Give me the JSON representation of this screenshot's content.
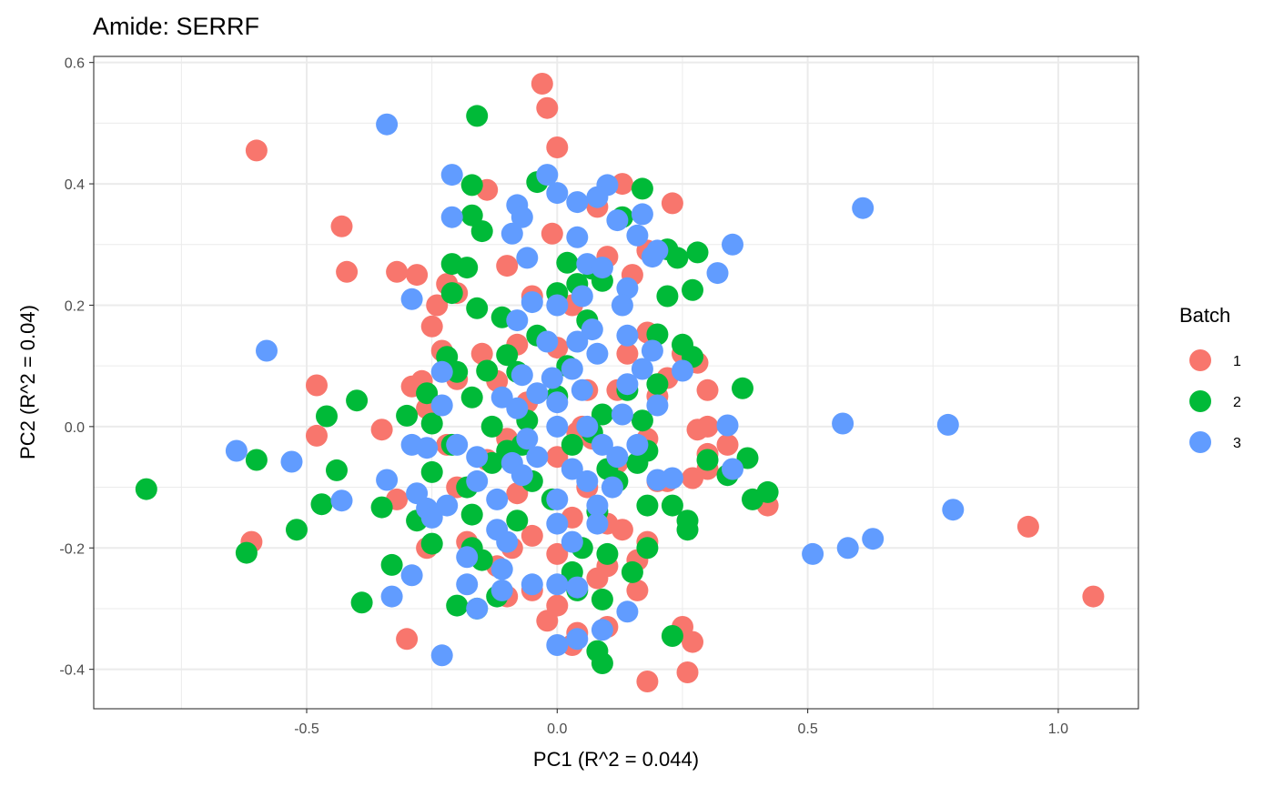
{
  "chart_data": {
    "type": "scatter",
    "title": "Amide: SERRF",
    "xlabel": "PC1 (R^2 = 0.044)",
    "ylabel": "PC2 (R^2 = 0.04)",
    "xlim": [
      -0.925,
      1.16
    ],
    "ylim": [
      -0.465,
      0.61
    ],
    "x_ticks": [
      -0.5,
      0.0,
      0.5,
      1.0
    ],
    "x_tick_labels": [
      "-0.5",
      "0.0",
      "0.5",
      "1.0"
    ],
    "y_ticks": [
      -0.4,
      -0.2,
      0.0,
      0.2,
      0.4,
      0.6
    ],
    "y_tick_labels": [
      "-0.4",
      "-0.2",
      "0.0",
      "0.2",
      "0.4",
      "0.6"
    ],
    "grid": true,
    "legend": {
      "title": "Batch",
      "position": "right"
    },
    "series": [
      {
        "name": "1",
        "color": "#F8766D",
        "points": [
          [
            -0.03,
            0.565
          ],
          [
            -0.02,
            0.525
          ],
          [
            0.0,
            0.46
          ],
          [
            -0.6,
            0.455
          ],
          [
            -0.14,
            0.39
          ],
          [
            0.13,
            0.4
          ],
          [
            0.23,
            0.368
          ],
          [
            -0.43,
            0.33
          ],
          [
            -0.42,
            0.255
          ],
          [
            -0.32,
            0.255
          ],
          [
            -0.28,
            0.25
          ],
          [
            -0.1,
            0.265
          ],
          [
            -0.01,
            0.318
          ],
          [
            0.08,
            0.362
          ],
          [
            0.1,
            0.28
          ],
          [
            0.18,
            0.29
          ],
          [
            -0.22,
            0.235
          ],
          [
            -0.2,
            0.22
          ],
          [
            -0.24,
            0.2
          ],
          [
            -0.05,
            0.215
          ],
          [
            0.15,
            0.25
          ],
          [
            -0.25,
            0.165
          ],
          [
            -0.23,
            0.125
          ],
          [
            -0.08,
            0.135
          ],
          [
            0.03,
            0.2
          ],
          [
            0.18,
            0.155
          ],
          [
            0.3,
            0.06
          ],
          [
            0.28,
            0.105
          ],
          [
            -0.48,
            0.068
          ],
          [
            -0.29,
            0.066
          ],
          [
            -0.27,
            0.075
          ],
          [
            -0.2,
            0.078
          ],
          [
            -0.12,
            0.075
          ],
          [
            -0.26,
            0.03
          ],
          [
            0.12,
            0.06
          ],
          [
            0.2,
            0.05
          ],
          [
            -0.35,
            -0.005
          ],
          [
            -0.48,
            -0.015
          ],
          [
            0.28,
            -0.005
          ],
          [
            0.3,
            0.0
          ],
          [
            0.34,
            -0.03
          ],
          [
            -0.22,
            -0.03
          ],
          [
            -0.1,
            -0.02
          ],
          [
            0.04,
            -0.01
          ],
          [
            0.18,
            -0.02
          ],
          [
            0.3,
            -0.045
          ],
          [
            -0.14,
            -0.055
          ],
          [
            0.0,
            -0.05
          ],
          [
            0.12,
            -0.06
          ],
          [
            0.27,
            -0.085
          ],
          [
            0.3,
            -0.07
          ],
          [
            -0.32,
            -0.12
          ],
          [
            -0.2,
            -0.1
          ],
          [
            -0.08,
            -0.11
          ],
          [
            0.06,
            -0.1
          ],
          [
            0.22,
            -0.09
          ],
          [
            0.42,
            -0.13
          ],
          [
            -0.61,
            -0.19
          ],
          [
            -0.26,
            -0.2
          ],
          [
            -0.18,
            -0.19
          ],
          [
            -0.05,
            -0.18
          ],
          [
            0.1,
            -0.16
          ],
          [
            0.18,
            -0.19
          ],
          [
            0.94,
            -0.165
          ],
          [
            -0.12,
            -0.23
          ],
          [
            0.0,
            -0.21
          ],
          [
            0.1,
            -0.23
          ],
          [
            0.16,
            -0.22
          ],
          [
            -0.1,
            -0.28
          ],
          [
            -0.05,
            -0.27
          ],
          [
            0.08,
            -0.25
          ],
          [
            0.16,
            -0.27
          ],
          [
            1.07,
            -0.28
          ],
          [
            -0.3,
            -0.35
          ],
          [
            -0.02,
            -0.32
          ],
          [
            0.04,
            -0.34
          ],
          [
            0.1,
            -0.33
          ],
          [
            0.25,
            -0.33
          ],
          [
            0.27,
            -0.355
          ],
          [
            0.0,
            -0.295
          ],
          [
            0.03,
            -0.36
          ],
          [
            0.18,
            -0.42
          ],
          [
            0.26,
            -0.405
          ],
          [
            0.2,
            -0.09
          ],
          [
            -0.15,
            0.12
          ],
          [
            0.0,
            0.13
          ],
          [
            0.06,
            0.06
          ],
          [
            0.22,
            0.08
          ],
          [
            0.25,
            0.12
          ],
          [
            0.05,
            0.0
          ],
          [
            -0.06,
            0.04
          ],
          [
            0.14,
            0.12
          ],
          [
            0.03,
            -0.15
          ],
          [
            -0.09,
            -0.2
          ],
          [
            0.13,
            -0.17
          ],
          [
            0.07,
            -0.02
          ]
        ]
      },
      {
        "name": "2",
        "color": "#00BA38",
        "points": [
          [
            -0.16,
            0.512
          ],
          [
            -0.17,
            0.398
          ],
          [
            -0.04,
            0.403
          ],
          [
            0.17,
            0.392
          ],
          [
            -0.17,
            0.348
          ],
          [
            -0.15,
            0.322
          ],
          [
            0.13,
            0.345
          ],
          [
            -0.21,
            0.268
          ],
          [
            -0.18,
            0.262
          ],
          [
            0.22,
            0.292
          ],
          [
            0.24,
            0.278
          ],
          [
            0.28,
            0.287
          ],
          [
            0.02,
            0.27
          ],
          [
            0.07,
            0.26
          ],
          [
            -0.21,
            0.22
          ],
          [
            -0.16,
            0.195
          ],
          [
            0.22,
            0.215
          ],
          [
            0.27,
            0.225
          ],
          [
            -0.11,
            0.18
          ],
          [
            0.06,
            0.175
          ],
          [
            0.2,
            0.152
          ],
          [
            -0.22,
            0.115
          ],
          [
            -0.1,
            0.118
          ],
          [
            0.25,
            0.135
          ],
          [
            0.27,
            0.115
          ],
          [
            -0.14,
            0.092
          ],
          [
            -0.2,
            0.09
          ],
          [
            -0.4,
            0.043
          ],
          [
            -0.46,
            0.017
          ],
          [
            -0.3,
            0.018
          ],
          [
            -0.26,
            0.055
          ],
          [
            -0.17,
            0.048
          ],
          [
            0.0,
            0.05
          ],
          [
            0.37,
            0.063
          ],
          [
            -0.25,
            0.005
          ],
          [
            -0.13,
            0.0
          ],
          [
            -0.06,
            0.01
          ],
          [
            0.09,
            0.02
          ],
          [
            0.17,
            0.01
          ],
          [
            -0.21,
            -0.03
          ],
          [
            -0.1,
            -0.04
          ],
          [
            0.03,
            -0.03
          ],
          [
            0.18,
            -0.04
          ],
          [
            0.3,
            -0.055
          ],
          [
            0.38,
            -0.052
          ],
          [
            -0.6,
            -0.055
          ],
          [
            -0.44,
            -0.072
          ],
          [
            -0.25,
            -0.075
          ],
          [
            -0.13,
            -0.06
          ],
          [
            0.1,
            -0.07
          ],
          [
            -0.82,
            -0.103
          ],
          [
            -0.47,
            -0.128
          ],
          [
            -0.35,
            -0.133
          ],
          [
            -0.18,
            -0.1
          ],
          [
            -0.05,
            -0.09
          ],
          [
            0.12,
            -0.09
          ],
          [
            0.23,
            -0.13
          ],
          [
            0.34,
            -0.08
          ],
          [
            0.39,
            -0.12
          ],
          [
            0.42,
            -0.108
          ],
          [
            -0.52,
            -0.17
          ],
          [
            -0.28,
            -0.155
          ],
          [
            -0.17,
            -0.145
          ],
          [
            -0.08,
            -0.155
          ],
          [
            0.08,
            -0.14
          ],
          [
            0.18,
            -0.13
          ],
          [
            0.26,
            -0.155
          ],
          [
            -0.62,
            -0.208
          ],
          [
            -0.25,
            -0.193
          ],
          [
            -0.17,
            -0.2
          ],
          [
            0.05,
            -0.2
          ],
          [
            0.18,
            -0.2
          ],
          [
            0.26,
            -0.17
          ],
          [
            -0.33,
            -0.228
          ],
          [
            -0.15,
            -0.22
          ],
          [
            0.03,
            -0.24
          ],
          [
            0.15,
            -0.24
          ],
          [
            -0.39,
            -0.29
          ],
          [
            -0.2,
            -0.295
          ],
          [
            -0.16,
            -0.3
          ],
          [
            -0.12,
            -0.28
          ],
          [
            0.04,
            -0.27
          ],
          [
            0.09,
            -0.285
          ],
          [
            0.23,
            -0.345
          ],
          [
            0.08,
            -0.37
          ],
          [
            0.09,
            -0.39
          ],
          [
            0.1,
            -0.21
          ],
          [
            -0.04,
            0.15
          ],
          [
            0.14,
            0.06
          ],
          [
            0.02,
            0.1
          ],
          [
            -0.07,
            -0.03
          ],
          [
            0.07,
            -0.01
          ],
          [
            0.16,
            -0.06
          ],
          [
            -0.01,
            -0.12
          ],
          [
            0.0,
            0.22
          ],
          [
            0.04,
            0.235
          ],
          [
            0.09,
            0.24
          ],
          [
            0.2,
            0.07
          ],
          [
            -0.08,
            0.09
          ]
        ]
      },
      {
        "name": "3",
        "color": "#619CFF",
        "points": [
          [
            -0.34,
            0.498
          ],
          [
            -0.21,
            0.415
          ],
          [
            -0.02,
            0.415
          ],
          [
            0.1,
            0.398
          ],
          [
            0.0,
            0.385
          ],
          [
            0.04,
            0.37
          ],
          [
            0.08,
            0.378
          ],
          [
            -0.08,
            0.365
          ],
          [
            -0.07,
            0.345
          ],
          [
            -0.21,
            0.345
          ],
          [
            0.12,
            0.34
          ],
          [
            0.17,
            0.35
          ],
          [
            -0.09,
            0.318
          ],
          [
            0.04,
            0.312
          ],
          [
            0.16,
            0.315
          ],
          [
            0.2,
            0.29
          ],
          [
            0.35,
            0.3
          ],
          [
            0.61,
            0.36
          ],
          [
            -0.06,
            0.278
          ],
          [
            0.19,
            0.28
          ],
          [
            0.32,
            0.253
          ],
          [
            0.06,
            0.268
          ],
          [
            0.09,
            0.262
          ],
          [
            0.14,
            0.228
          ],
          [
            -0.29,
            0.21
          ],
          [
            -0.05,
            0.205
          ],
          [
            0.0,
            0.2
          ],
          [
            0.05,
            0.215
          ],
          [
            0.13,
            0.2
          ],
          [
            -0.08,
            0.175
          ],
          [
            0.07,
            0.16
          ],
          [
            0.14,
            0.15
          ],
          [
            -0.58,
            0.125
          ],
          [
            -0.02,
            0.14
          ],
          [
            0.19,
            0.125
          ],
          [
            -0.23,
            0.09
          ],
          [
            -0.07,
            0.085
          ],
          [
            0.03,
            0.095
          ],
          [
            0.17,
            0.095
          ],
          [
            0.25,
            0.092
          ],
          [
            -0.11,
            0.048
          ],
          [
            -0.04,
            0.055
          ],
          [
            0.05,
            0.06
          ],
          [
            0.14,
            0.07
          ],
          [
            0.2,
            0.035
          ],
          [
            -0.23,
            0.035
          ],
          [
            -0.08,
            0.03
          ],
          [
            0.0,
            0.04
          ],
          [
            0.13,
            0.02
          ],
          [
            0.34,
            0.002
          ],
          [
            0.57,
            0.005
          ],
          [
            0.78,
            0.003
          ],
          [
            -0.64,
            -0.04
          ],
          [
            -0.29,
            -0.03
          ],
          [
            -0.26,
            -0.035
          ],
          [
            -0.2,
            -0.03
          ],
          [
            -0.06,
            -0.02
          ],
          [
            0.0,
            0.0
          ],
          [
            0.09,
            -0.03
          ],
          [
            0.16,
            -0.03
          ],
          [
            -0.53,
            -0.058
          ],
          [
            -0.16,
            -0.05
          ],
          [
            -0.09,
            -0.06
          ],
          [
            0.03,
            -0.07
          ],
          [
            0.12,
            -0.05
          ],
          [
            -0.34,
            -0.088
          ],
          [
            -0.16,
            -0.09
          ],
          [
            -0.07,
            -0.08
          ],
          [
            0.06,
            -0.09
          ],
          [
            0.2,
            -0.088
          ],
          [
            0.23,
            -0.085
          ],
          [
            0.35,
            -0.07
          ],
          [
            -0.43,
            -0.122
          ],
          [
            -0.28,
            -0.11
          ],
          [
            -0.26,
            -0.135
          ],
          [
            -0.22,
            -0.13
          ],
          [
            -0.12,
            -0.12
          ],
          [
            0.0,
            -0.12
          ],
          [
            0.08,
            -0.13
          ],
          [
            -0.25,
            -0.15
          ],
          [
            -0.12,
            -0.17
          ],
          [
            0.0,
            -0.16
          ],
          [
            0.08,
            -0.16
          ],
          [
            0.51,
            -0.21
          ],
          [
            0.58,
            -0.2
          ],
          [
            0.63,
            -0.185
          ],
          [
            0.79,
            -0.137
          ],
          [
            -0.18,
            -0.215
          ],
          [
            -0.1,
            -0.19
          ],
          [
            0.03,
            -0.19
          ],
          [
            -0.29,
            -0.245
          ],
          [
            -0.11,
            -0.235
          ],
          [
            -0.05,
            -0.26
          ],
          [
            0.0,
            -0.26
          ],
          [
            0.04,
            -0.265
          ],
          [
            -0.33,
            -0.28
          ],
          [
            -0.18,
            -0.26
          ],
          [
            -0.16,
            -0.3
          ],
          [
            -0.11,
            -0.27
          ],
          [
            0.14,
            -0.305
          ],
          [
            0.09,
            -0.335
          ],
          [
            0.04,
            -0.35
          ],
          [
            0.0,
            -0.36
          ],
          [
            -0.23,
            -0.377
          ],
          [
            0.04,
            0.14
          ],
          [
            0.08,
            0.12
          ],
          [
            -0.01,
            0.08
          ],
          [
            0.06,
            0.0
          ],
          [
            -0.04,
            -0.05
          ],
          [
            0.11,
            -0.1
          ]
        ]
      }
    ]
  }
}
